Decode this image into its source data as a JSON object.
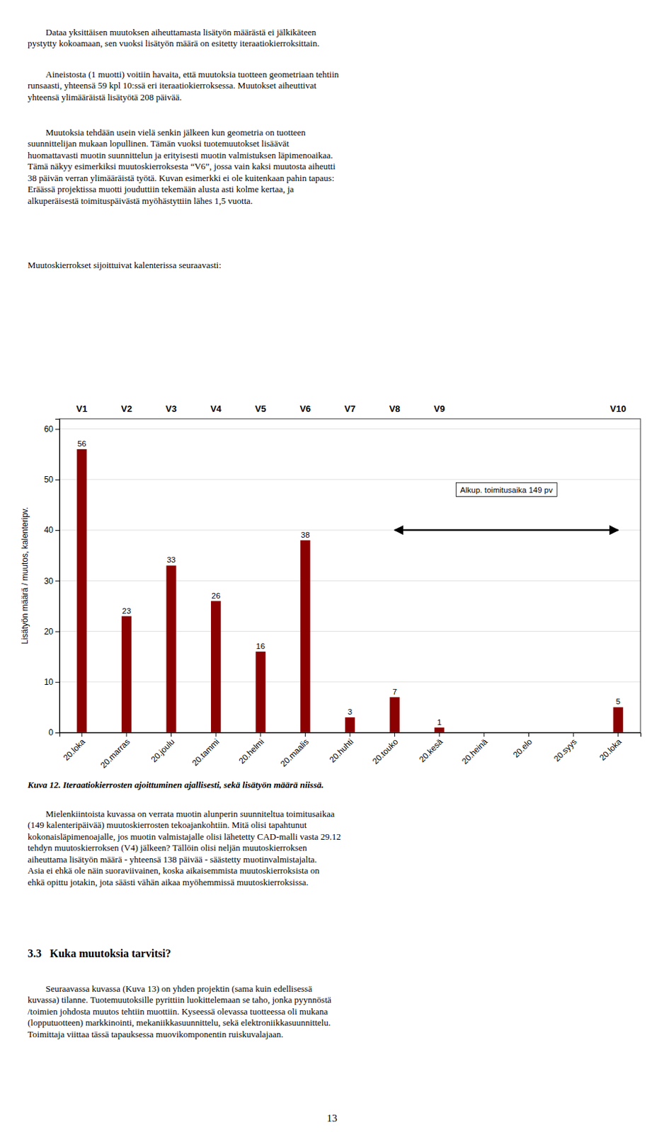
{
  "chart_data": {
    "type": "bar",
    "ylabel": "Lisätyön määrä / muutos, kalenteripv.",
    "categories": [
      "20.loka",
      "20.marras",
      "20.joulu",
      "20.tammi",
      "20.helmi",
      "20.maalis",
      "20.huhti",
      "20.touko",
      "20.kesä",
      "20.heinä",
      "20.elo",
      "20.syys",
      "20.loka"
    ],
    "values": [
      56,
      23,
      33,
      26,
      16,
      38,
      3,
      7,
      1,
      0,
      0,
      0,
      5
    ],
    "value_labels": [
      "56",
      "23",
      "33",
      "26",
      "16",
      "38",
      "3",
      "7",
      "1",
      null,
      null,
      null,
      "5"
    ],
    "data_labels": true,
    "version_labels": [
      "V1",
      "V2",
      "V3",
      "V4",
      "V5",
      "V6",
      "V7",
      "V8",
      "V9",
      null,
      null,
      null,
      "V10"
    ],
    "color": "#8B0000",
    "ylim": [
      0,
      62
    ],
    "yticks": [
      0,
      10,
      20,
      30,
      40,
      50,
      60
    ],
    "grid": true,
    "arrow": {
      "x_start": 7.0,
      "x_end": 12.0,
      "y": 40,
      "label": "Alkup. toimitusaika 149 pv",
      "label_x": 9.5,
      "label_y": 48
    }
  },
  "page": {
    "before": [
      [
        "Dataa yksittäisen muutoksen aiheuttamasta lisätyön määrästä ei jälkikäteen",
        "pystytty kokoamaan, sen vuoksi lisätyön määrä on esitetty iteraatiokierroksittain."
      ],
      [
        "Aineistosta (1 muotti) voitiin havaita, että muutoksia tuotteen geometriaan tehtiin",
        "runsaasti, yhteensä 59 kpl 10:ssä eri iteraatiokierroksessa. Muutokset aiheuttivat",
        "yhteensä ylimääräistä lisätyötä 208 päivää."
      ],
      [
        "Muutoksia tehdään usein vielä senkin jälkeen kun geometria on tuotteen",
        "suunnittelijan mukaan lopullinen. Tämän vuoksi tuotemuutokset lisäävät",
        "huomattavasti muotin suunnittelun ja erityisesti muotin valmistuksen läpimenoaikaa.",
        "Tämä näkyy esimerkiksi muutoskierroksesta “V6”, jossa vain kaksi muutosta aiheutti",
        "38 päivän verran ylimääräistä työtä. Kuvan esimerkki ei ole kuitenkaan pahin tapaus:",
        "Eräässä projektissa muotti jouduttiin tekemään alusta asti kolme kertaa, ja",
        "alkuperäisestä toimituspäivästä myöhästyttiin lähes 1,5 vuotta."
      ]
    ],
    "above_text": "Muutoskierrokset sijoittuivat kalenterissa seuraavasti:",
    "caption": "Kuva 12. Iteraatiokierrosten ajoittuminen ajallisesti, sekä lisätyön määrä niissä.",
    "after": [
      "Mielenkiintoista kuvassa on verrata muotin alunperin suunniteltua toimitusaikaa",
      "(149 kalenteripäivää) muutoskierrosten tekoajankohtiin. Mitä olisi tapahtunut",
      "kokonaisläpimenoajalle, jos muotin valmistajalle olisi lähetetty CAD-malli vasta 29.12",
      "tehdyn muutoskierroksen (V4) jälkeen? Tällöin olisi neljän muutoskierroksen",
      "aiheuttama lisätyön määrä - yhteensä 138 päivää - säästetty muotinvalmistajalta.",
      "Asia ei ehkä ole näin suoraviivainen, koska aikaisemmista muutoskierroksista on",
      "ehkä opittu jotakin, jota säästi vähän aikaa myöhemmissä muutoskierroksissa."
    ],
    "section": "3.3   Kuka muutoksia tarvitsi?",
    "last": [
      "Seuraavassa kuvassa (Kuva 13) on yhden projektin (sama kuin edellisessä",
      "kuvassa) tilanne. Tuotemuutoksille pyrittiin luokittelemaan se taho, jonka pyynnöstä",
      "/toimien johdosta muutos tehtiin muottiin. Kyseessä olevassa tuotteessa oli mukana",
      "(lopputuotteen) markkinointi, mekaniikkasuunnittelu, sekä elektroniikkasuunnittelu.",
      "Toimittaja viittaa tässä tapauksessa muovikomponentin ruiskuvalajaan."
    ],
    "page_number": "13"
  }
}
